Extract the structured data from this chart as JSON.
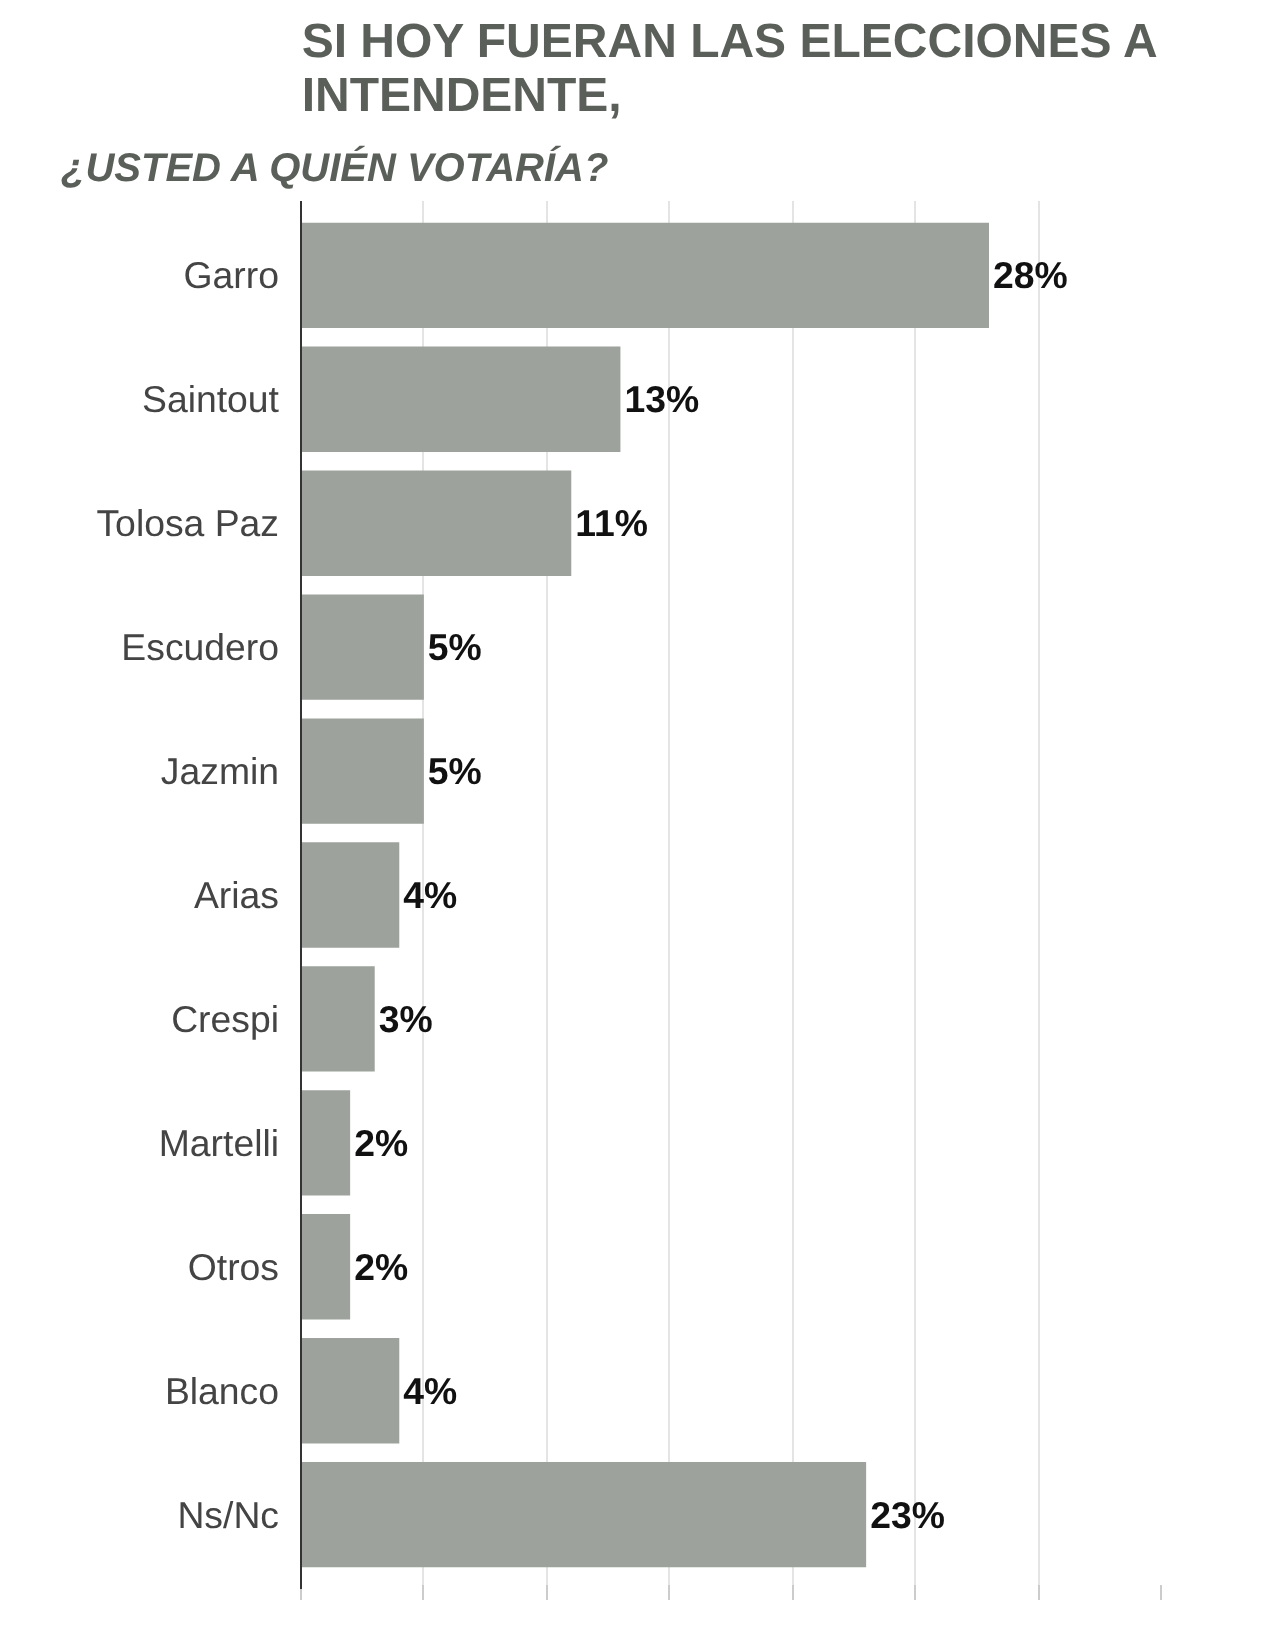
{
  "chart_data": {
    "type": "bar",
    "orientation": "horizontal",
    "title": "SI HOY FUERAN LAS ELECCIONES A\nINTENDENTE,",
    "subtitle": "¿USTED A QUIÉN VOTARÍA?",
    "categories": [
      "Garro",
      "Saintout",
      "Tolosa Paz",
      "Escudero",
      "Jazmin",
      "Arias",
      "Crespi",
      "Martelli",
      "Otros",
      "Blanco",
      "Ns/Nc"
    ],
    "values": [
      28,
      13,
      11,
      5,
      5,
      4,
      3,
      2,
      2,
      4,
      23
    ],
    "value_labels": [
      "28%",
      "13%",
      "11%",
      "5%",
      "5%",
      "4%",
      "3%",
      "2%",
      "2%",
      "4%",
      "23%"
    ],
    "color": "#9da29c",
    "xticks": [
      {
        "value": 0,
        "label": null
      },
      {
        "value": 5,
        "label": null
      },
      {
        "value": 10,
        "label": null
      },
      {
        "value": 15,
        "label": null
      },
      {
        "value": 20,
        "label": null
      },
      {
        "value": 25,
        "label": null
      },
      {
        "value": 30,
        "label": null
      },
      {
        "value": 35,
        "label": null
      }
    ],
    "grid": "x",
    "tick_labels": "y"
  }
}
